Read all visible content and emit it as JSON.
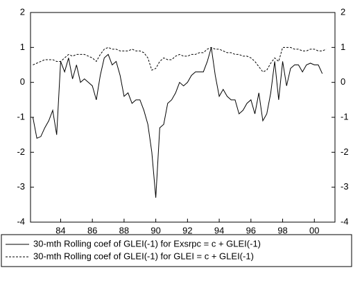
{
  "chart_data": {
    "type": "line",
    "x": [
      1982.25,
      1982.5,
      1982.75,
      1983,
      1983.25,
      1983.5,
      1983.75,
      1984,
      1984.25,
      1984.5,
      1984.75,
      1985,
      1985.25,
      1985.5,
      1985.75,
      1986,
      1986.25,
      1986.5,
      1986.75,
      1987,
      1987.25,
      1987.5,
      1987.75,
      1988,
      1988.25,
      1988.5,
      1988.75,
      1989,
      1989.25,
      1989.5,
      1989.75,
      1990,
      1990.25,
      1990.5,
      1990.75,
      1991,
      1991.25,
      1991.5,
      1991.75,
      1992,
      1992.25,
      1992.5,
      1992.75,
      1993,
      1993.25,
      1993.5,
      1993.75,
      1994,
      1994.25,
      1994.5,
      1994.75,
      1995,
      1995.25,
      1995.5,
      1995.75,
      1996,
      1996.25,
      1996.5,
      1996.75,
      1997,
      1997.25,
      1997.5,
      1997.75,
      1998,
      1998.25,
      1998.5,
      1998.75,
      1999,
      1999.25,
      1999.5,
      1999.75,
      2000,
      2000.25,
      2000.5,
      2000.75
    ],
    "series": [
      {
        "name": "30-mth Rolling coef of GLEI(-1) for Exsrpc = c + GLEI(-1)",
        "color": "#000000",
        "style": "solid",
        "values": [
          -1.0,
          -1.6,
          -1.55,
          -1.3,
          -1.1,
          -0.8,
          -1.5,
          0.6,
          0.3,
          0.7,
          0.1,
          0.5,
          0.0,
          0.1,
          0.0,
          -0.1,
          -0.5,
          0.2,
          0.7,
          0.8,
          0.5,
          0.6,
          0.2,
          -0.4,
          -0.3,
          -0.6,
          -0.5,
          -0.5,
          -0.8,
          -1.2,
          -2.0,
          -3.3,
          -1.3,
          -1.2,
          -0.6,
          -0.5,
          -0.3,
          0.0,
          -0.1,
          0.0,
          0.2,
          0.3,
          0.3,
          0.3,
          0.6,
          1.0,
          0.2,
          -0.4,
          -0.2,
          -0.4,
          -0.5,
          -0.5,
          -0.9,
          -0.8,
          -0.6,
          -0.5,
          -0.9,
          -0.3,
          -1.1,
          -0.9,
          -0.3,
          0.6,
          -0.5,
          0.6,
          -0.1,
          0.4,
          0.5,
          0.5,
          0.3,
          0.5,
          0.55,
          0.5,
          0.5,
          0.25,
          null
        ]
      },
      {
        "name": "30-mth Rolling coef of GLEI(-1) for GLEI = c + GLEI(-1)",
        "color": "#000000",
        "style": "dashed",
        "values": [
          0.5,
          0.55,
          0.6,
          0.65,
          0.65,
          0.65,
          0.6,
          0.6,
          0.7,
          0.8,
          0.75,
          0.8,
          0.8,
          0.8,
          0.75,
          0.7,
          0.6,
          0.8,
          0.95,
          1.0,
          0.95,
          0.95,
          0.9,
          0.9,
          0.9,
          0.95,
          0.9,
          0.9,
          0.85,
          0.7,
          0.35,
          0.4,
          0.6,
          0.7,
          0.65,
          0.65,
          0.75,
          0.8,
          0.75,
          0.75,
          0.8,
          0.8,
          0.85,
          0.85,
          0.95,
          1.0,
          0.95,
          0.95,
          0.9,
          0.85,
          0.85,
          0.8,
          0.8,
          0.75,
          0.75,
          0.7,
          0.6,
          0.45,
          0.3,
          0.35,
          0.55,
          0.7,
          0.6,
          1.0,
          1.0,
          1.0,
          0.95,
          0.95,
          0.9,
          0.9,
          0.95,
          0.95,
          0.9,
          0.9,
          0.95
        ]
      }
    ],
    "xlim": [
      1982.1,
      2001.3
    ],
    "xticks": [
      {
        "value": 1984,
        "label": "84"
      },
      {
        "value": 1986,
        "label": "86"
      },
      {
        "value": 1988,
        "label": "88"
      },
      {
        "value": 1990,
        "label": "90"
      },
      {
        "value": 1992,
        "label": "92"
      },
      {
        "value": 1994,
        "label": "94"
      },
      {
        "value": 1996,
        "label": "96"
      },
      {
        "value": 1998,
        "label": "98"
      },
      {
        "value": 2000,
        "label": "00"
      }
    ],
    "ylim": [
      -4,
      2
    ],
    "yticks": [
      -4,
      -3,
      -2,
      -1,
      0,
      1,
      2
    ],
    "y2lim": [
      -4,
      2
    ],
    "y2ticks": [
      -4,
      -3,
      -2,
      -1,
      0,
      1,
      2
    ]
  }
}
